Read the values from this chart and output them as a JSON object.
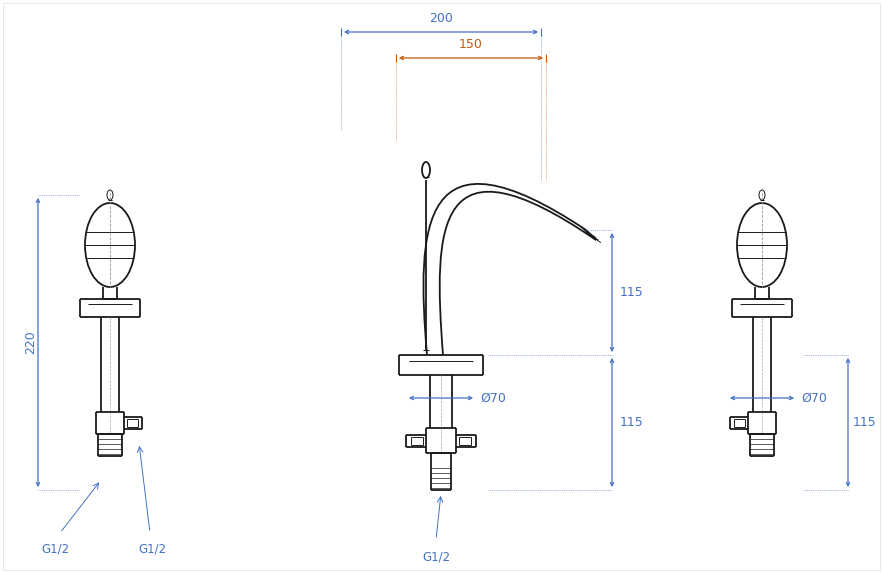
{
  "bg_color": "#ffffff",
  "line_color": "#1a1a1a",
  "dim_color_blue": "#4472c4",
  "dim_color_orange": "#c55a11",
  "dim_200": "200",
  "dim_150": "150",
  "dim_220": "220",
  "dim_115_top": "115",
  "dim_115_bot": "115",
  "dim_70_center": "Ø70",
  "dim_70_right": "Ø70",
  "dim_g12_left1": "G1/2",
  "dim_g12_left2": "G1/2",
  "dim_g12_center": "G1/2",
  "figsize": [
    8.83,
    5.73
  ],
  "dpi": 100
}
